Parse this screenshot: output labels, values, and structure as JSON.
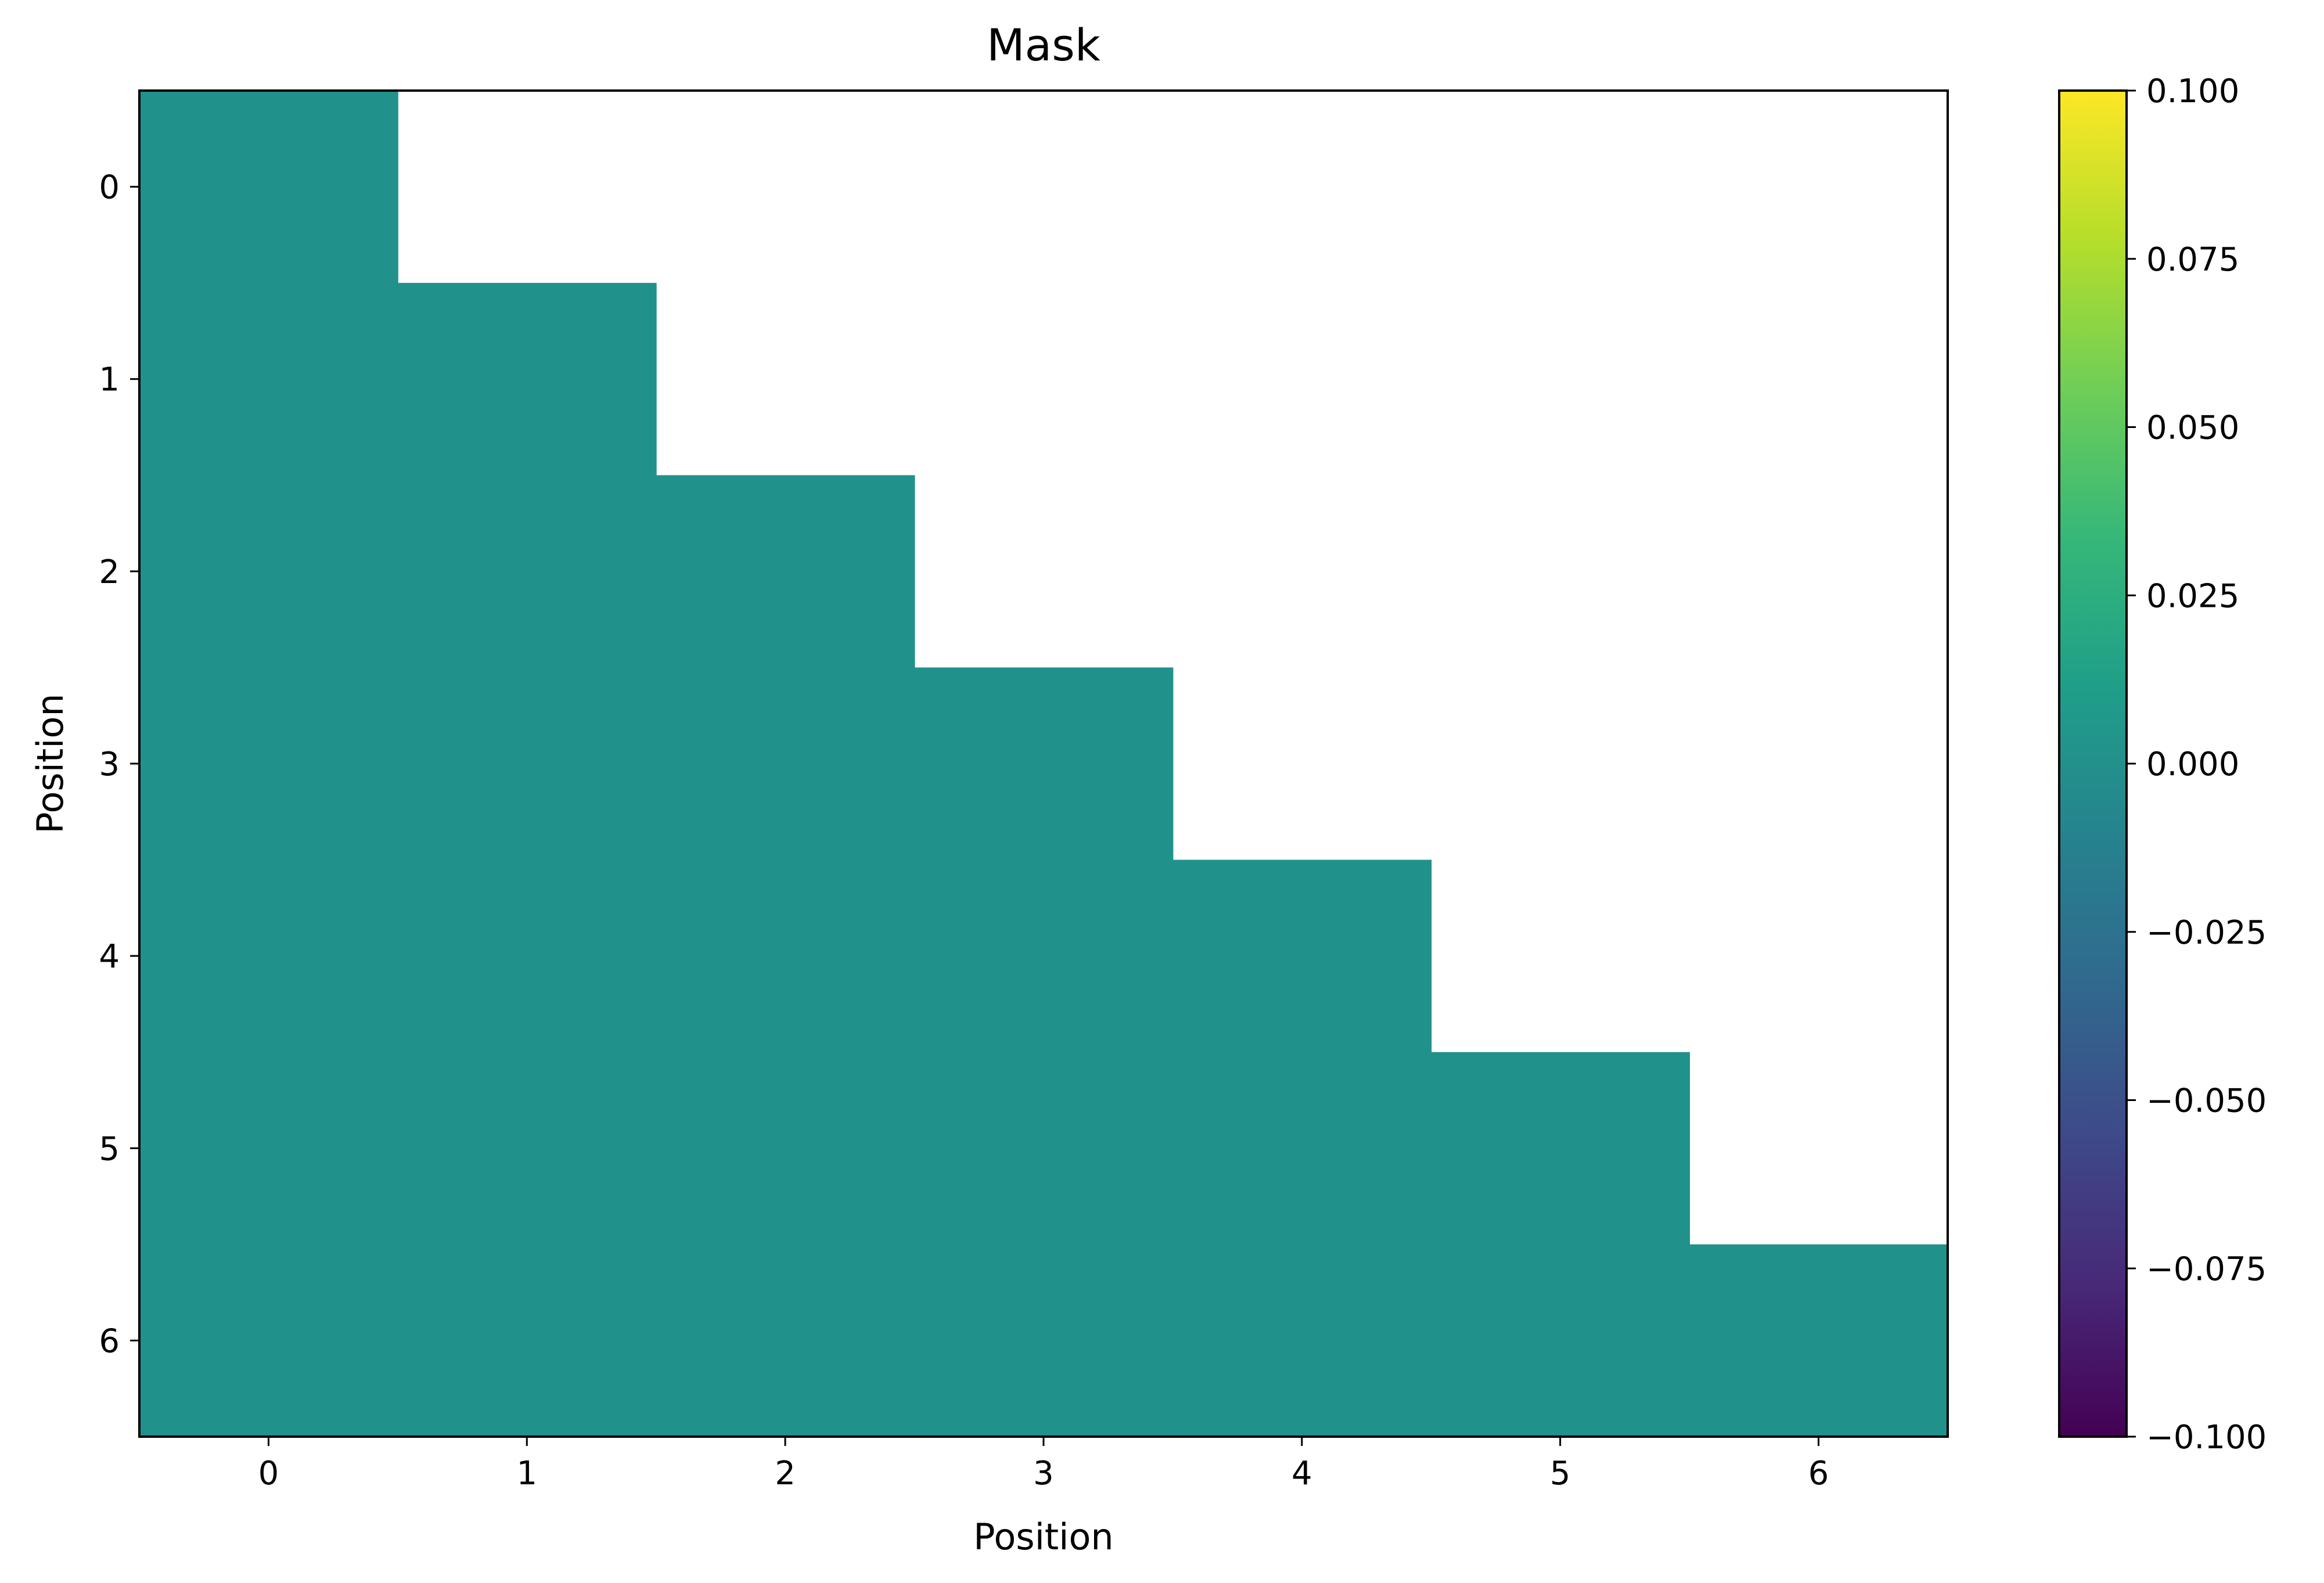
{
  "chart_data": {
    "type": "heatmap",
    "title": "Mask",
    "xlabel": "Position",
    "ylabel": "Position",
    "x_categories": [
      "0",
      "1",
      "2",
      "3",
      "4",
      "5",
      "6"
    ],
    "y_categories": [
      "0",
      "1",
      "2",
      "3",
      "4",
      "5",
      "6"
    ],
    "values": [
      [
        0,
        null,
        null,
        null,
        null,
        null,
        null
      ],
      [
        0,
        0,
        null,
        null,
        null,
        null,
        null
      ],
      [
        0,
        0,
        0,
        null,
        null,
        null,
        null
      ],
      [
        0,
        0,
        0,
        0,
        null,
        null,
        null
      ],
      [
        0,
        0,
        0,
        0,
        0,
        null,
        null
      ],
      [
        0,
        0,
        0,
        0,
        0,
        0,
        null
      ],
      [
        0,
        0,
        0,
        0,
        0,
        0,
        0
      ]
    ],
    "masked_cells": "upper triangle above diagonal (blank/white)",
    "colormap": "viridis",
    "cell_color": "#21918c",
    "colorbar": {
      "range": [
        -0.1,
        0.1
      ],
      "ticks": [
        "−0.100",
        "−0.075",
        "−0.050",
        "−0.025",
        "0.000",
        "0.025",
        "0.050",
        "0.075",
        "0.100"
      ],
      "tick_values": [
        -0.1,
        -0.075,
        -0.05,
        -0.025,
        0.0,
        0.025,
        0.05,
        0.075,
        0.1
      ],
      "colors": [
        "#440154",
        "#482878",
        "#3e4989",
        "#31688e",
        "#26828e",
        "#1f9e89",
        "#35b779",
        "#6ece58",
        "#b5de2b",
        "#fde725"
      ]
    },
    "grid": false
  }
}
